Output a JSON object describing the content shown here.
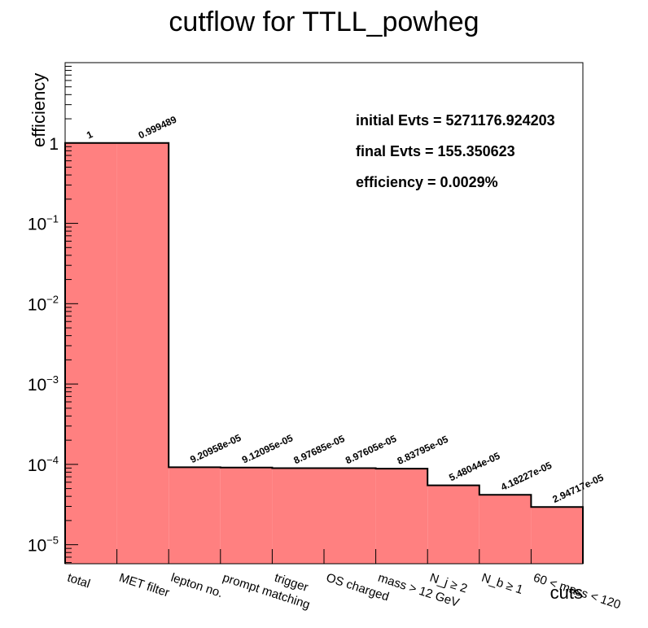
{
  "chart_data": {
    "type": "bar",
    "title": "cutflow for TTLL_powheg",
    "xlabel": "cuts",
    "ylabel": "efficiency",
    "yscale": "log",
    "ylim": [
      5.8e-06,
      10
    ],
    "grid": false,
    "bar_color": "#ff8080",
    "categories": [
      "total",
      "MET filter",
      "lepton no.",
      "prompt matching",
      "trigger",
      "OS charged",
      "mass > 12 GeV",
      "N_j ≥ 2",
      "N_b ≥ 1",
      "60 < mass < 120"
    ],
    "values": [
      1,
      0.999489,
      9.20958e-05,
      9.12095e-05,
      8.97685e-05,
      8.97605e-05,
      8.83795e-05,
      5.48044e-05,
      4.18227e-05,
      2.94717e-05
    ],
    "value_labels": [
      "1",
      "0.999489",
      "9.20958e-05",
      "9.12095e-05",
      "8.97685e-05",
      "8.97605e-05",
      "8.83795e-05",
      "5.48044e-05",
      "4.18227e-05",
      "2.94717e-05"
    ],
    "y_ticks": [
      {
        "value": 1,
        "base": "1",
        "exp": ""
      },
      {
        "value": 0.1,
        "base": "10",
        "exp": "−1"
      },
      {
        "value": 0.01,
        "base": "10",
        "exp": "−2"
      },
      {
        "value": 0.001,
        "base": "10",
        "exp": "−3"
      },
      {
        "value": 0.0001,
        "base": "10",
        "exp": "−4"
      },
      {
        "value": 1e-05,
        "base": "10",
        "exp": "−5"
      }
    ],
    "annotations": [
      "initial Evts = 5271176.924203",
      "final Evts = 155.350623",
      "efficiency = 0.0029%"
    ]
  }
}
